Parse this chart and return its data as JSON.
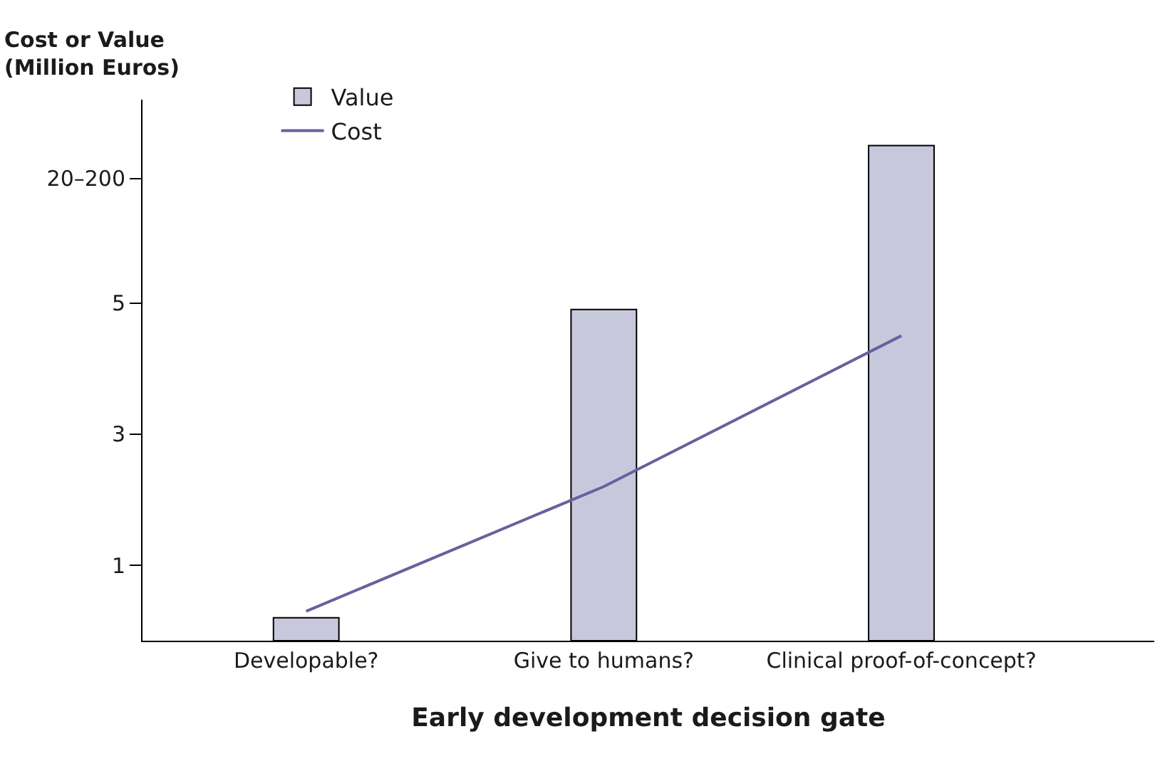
{
  "chart_data": {
    "type": "bar",
    "ylabel": "Cost or Value\n(Million Euros)",
    "xlabel": "Early development decision gate",
    "categories": [
      "Developable?",
      "Give to humans?",
      "Clinical proof-of-concept?"
    ],
    "series": [
      {
        "name": "Value",
        "color": "#c8c8dc",
        "base": [
          -0.15,
          -0.15,
          -0.15
        ],
        "values": [
          0.35,
          5.05,
          7.55
        ]
      },
      {
        "name": "Cost",
        "type": "line",
        "color": "#6a5f9e",
        "values": [
          0.3,
          2.2,
          4.5
        ]
      }
    ],
    "ylim": [
      -0.15,
      8.1
    ],
    "yticks": [
      1,
      3,
      5,
      {
        "value": 6.9,
        "label": "20–200"
      }
    ],
    "legend": "top left",
    "marker": "none",
    "line_style": "solid"
  }
}
